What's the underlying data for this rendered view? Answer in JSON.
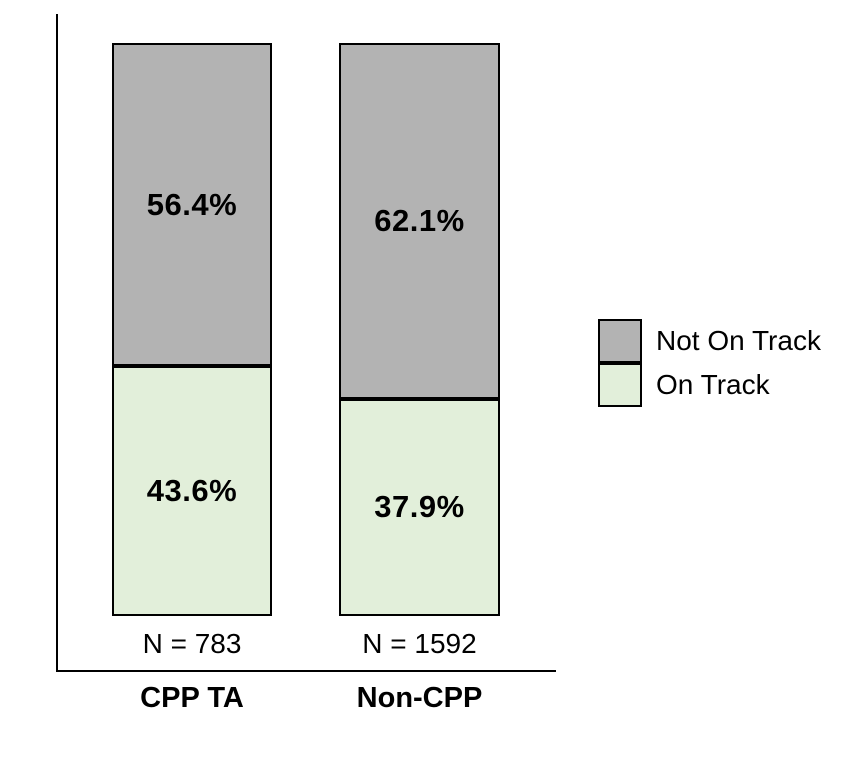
{
  "colors": {
    "not_on_track": "#b3b3b3",
    "on_track": "#e2efda",
    "border": "#000000",
    "background": "#ffffff"
  },
  "chart_data": {
    "type": "bar",
    "stacked": true,
    "orientation": "vertical",
    "categories": [
      "CPP TA",
      "Non-CPP"
    ],
    "n_labels": [
      "N = 783",
      "N = 1592"
    ],
    "series": [
      {
        "name": "Not On Track",
        "color": "#b3b3b3",
        "position": "top",
        "values": [
          56.4,
          62.1
        ],
        "labels": [
          "56.4%",
          "62.1%"
        ]
      },
      {
        "name": "On Track",
        "color": "#e2efda",
        "position": "bottom",
        "values": [
          43.6,
          37.9
        ],
        "labels": [
          "43.6%",
          "37.9%"
        ]
      }
    ],
    "title": "",
    "xlabel": "",
    "ylabel": "",
    "ylim": [
      0,
      100
    ],
    "grid": false,
    "legend_position": "right",
    "legend_entries": [
      "Not On Track",
      "On Track"
    ]
  }
}
